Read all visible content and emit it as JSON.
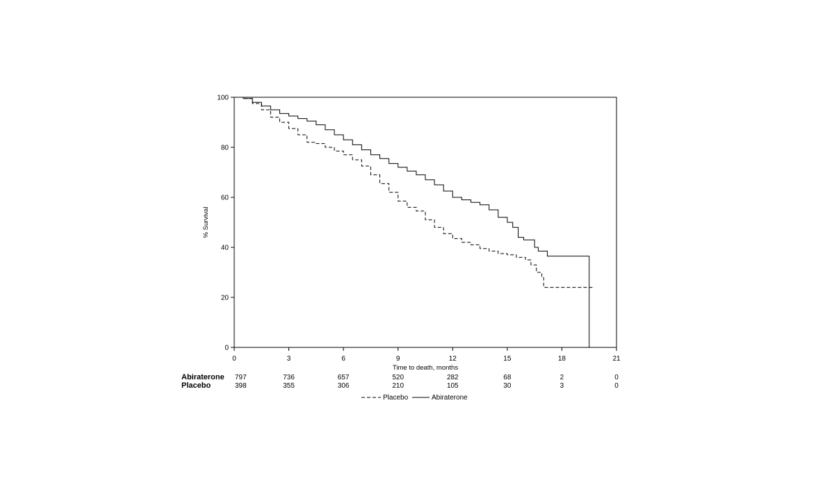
{
  "chart_data": {
    "type": "line",
    "xlabel": "Time to death, months",
    "ylabel": "% Survival",
    "xlim": [
      0,
      21
    ],
    "ylim": [
      0,
      100
    ],
    "xticks": [
      0,
      3,
      6,
      9,
      12,
      15,
      18,
      21
    ],
    "yticks": [
      0,
      20,
      40,
      60,
      80,
      100
    ],
    "grid": false,
    "series": [
      {
        "name": "Abiraterone",
        "style": "solid",
        "color": "#000000",
        "x": [
          0,
          0.5,
          1,
          1.5,
          2,
          2.5,
          3,
          3.5,
          4,
          4.5,
          5,
          5.5,
          6,
          6.5,
          7,
          7.5,
          8,
          8.5,
          9,
          9.5,
          10,
          10.5,
          11,
          11.5,
          12,
          12.5,
          13,
          13.5,
          14,
          14.5,
          15,
          15.3,
          15.6,
          15.9,
          16.5,
          16.7,
          17.2,
          19.5,
          19.5
        ],
        "y": [
          100,
          99.5,
          98,
          96.5,
          95,
          93.5,
          92.5,
          91.5,
          90.5,
          89,
          87,
          85,
          83,
          81,
          79,
          77,
          75.5,
          73.5,
          72,
          70.5,
          69,
          67,
          65,
          62.5,
          60,
          59,
          58,
          57,
          55,
          52,
          50,
          48,
          44,
          43,
          40,
          38.5,
          36.5,
          36.5,
          0
        ]
      },
      {
        "name": "Placebo",
        "style": "dashed",
        "color": "#000000",
        "x": [
          0,
          0.5,
          1,
          1.5,
          2,
          2.5,
          3,
          3.5,
          4,
          4.5,
          5,
          5.5,
          6,
          6.5,
          7,
          7.5,
          8,
          8.5,
          9,
          9.5,
          10,
          10.5,
          11,
          11.5,
          12,
          12.5,
          13,
          13.5,
          14,
          14.5,
          15,
          15.5,
          16,
          16.3,
          16.6,
          16.9,
          17,
          17.5,
          19.8
        ],
        "y": [
          100,
          99.5,
          97.5,
          95,
          92,
          90,
          87.5,
          85,
          82,
          81.5,
          80,
          78.5,
          77,
          75,
          72.5,
          69,
          65.5,
          62,
          58.5,
          56,
          54.5,
          51,
          48,
          45.5,
          43.5,
          42,
          41,
          39.5,
          38.5,
          37.5,
          37,
          36,
          35,
          33,
          30,
          28,
          24,
          24,
          24
        ]
      }
    ],
    "risk_table": {
      "rows": [
        {
          "label": "Abiraterone",
          "values": [
            "797",
            "736",
            "657",
            "520",
            "282",
            "68",
            "2",
            "0"
          ]
        },
        {
          "label": "Placebo",
          "values": [
            "398",
            "355",
            "306",
            "210",
            "105",
            "30",
            "3",
            "0"
          ]
        }
      ]
    },
    "legend": {
      "placement": "bottom",
      "entries": [
        {
          "label": "Placebo",
          "style": "dashed"
        },
        {
          "label": "Abiraterone",
          "style": "solid"
        }
      ]
    }
  }
}
